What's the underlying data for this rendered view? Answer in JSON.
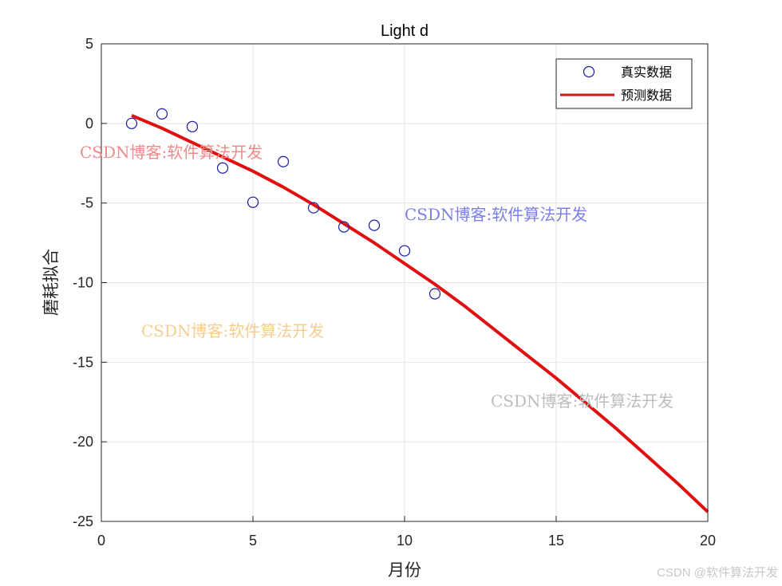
{
  "chart_data": {
    "type": "line",
    "title": "Light d",
    "xlabel": "月份",
    "ylabel": "磨耗拟合",
    "xlim": [
      0,
      20
    ],
    "ylim": [
      -25,
      5
    ],
    "xticks": [
      0,
      5,
      10,
      15,
      20
    ],
    "yticks": [
      5,
      0,
      -5,
      -10,
      -15,
      -20,
      -25
    ],
    "grid": true,
    "legend_position": "top-right",
    "series": [
      {
        "name": "真实数据",
        "kind": "scatter",
        "marker": "circle",
        "color": "#1a1aa6",
        "x": [
          1,
          2,
          3,
          4,
          5,
          6,
          7,
          8,
          9,
          10,
          11
        ],
        "y": [
          0.0,
          0.6,
          -0.2,
          -2.8,
          -4.95,
          -2.4,
          -5.3,
          -6.5,
          -6.4,
          -8.0,
          -10.7
        ]
      },
      {
        "name": "预测数据",
        "kind": "line",
        "color": "#e01010",
        "x": [
          1,
          2,
          3,
          4,
          5,
          6,
          7,
          8,
          9,
          10,
          11,
          12,
          13,
          14,
          15,
          16,
          17,
          18,
          19,
          20
        ],
        "y": [
          0.5,
          -0.3,
          -1.2,
          -2.1,
          -3.0,
          -4.0,
          -5.1,
          -6.3,
          -7.5,
          -8.8,
          -10.1,
          -11.5,
          -13.0,
          -14.5,
          -16.0,
          -17.6,
          -19.2,
          -20.9,
          -22.6,
          -24.4
        ]
      }
    ]
  },
  "watermarks": [
    {
      "text": "CSDN博客:软件算法开发",
      "color": "#f08a8a"
    },
    {
      "text": "CSDN博客:软件算法开发",
      "color": "#7b7fe6"
    },
    {
      "text": "CSDN博客:软件算法开发",
      "color": "#f7cd90"
    },
    {
      "text": "CSDN博客:软件算法开发",
      "color": "#bdbdbd"
    }
  ],
  "footer": "CSDN @软件算法开发"
}
